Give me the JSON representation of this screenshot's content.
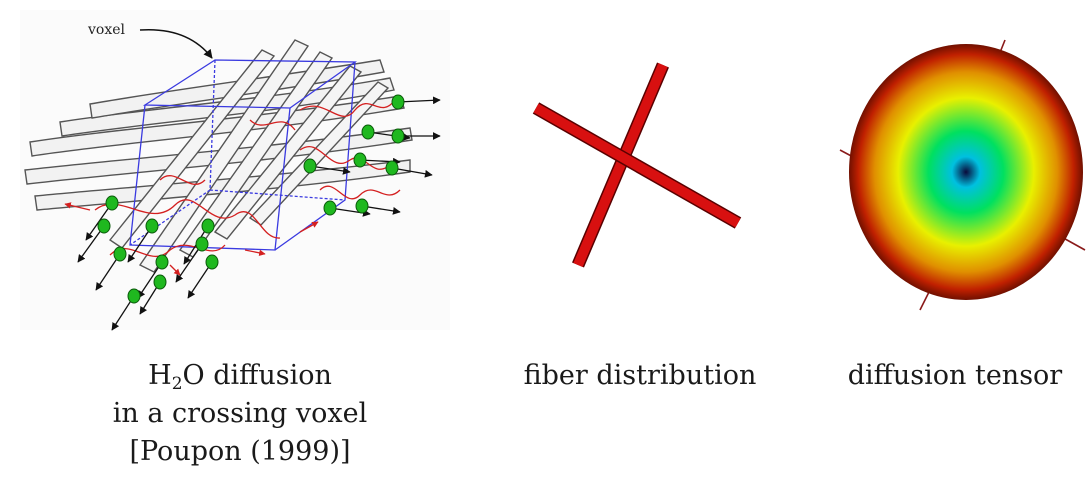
{
  "figure": {
    "voxel_panel": {
      "label": "voxel",
      "caption_line1_prefix": "H",
      "caption_line1_sub": "2",
      "caption_line1_suffix": "O diffusion",
      "caption_line2": "in a crossing voxel",
      "caption_line3": "[Poupon (1999)]"
    },
    "fiber_panel": {
      "caption": "fiber distribution",
      "fiber_color": "#d81010"
    },
    "tensor_panel": {
      "caption": "diffusion tensor",
      "gradient_colors": [
        "#0a0a3a",
        "#00c0e0",
        "#00e060",
        "#e8f000",
        "#e09000",
        "#c02000",
        "#701000"
      ]
    }
  }
}
